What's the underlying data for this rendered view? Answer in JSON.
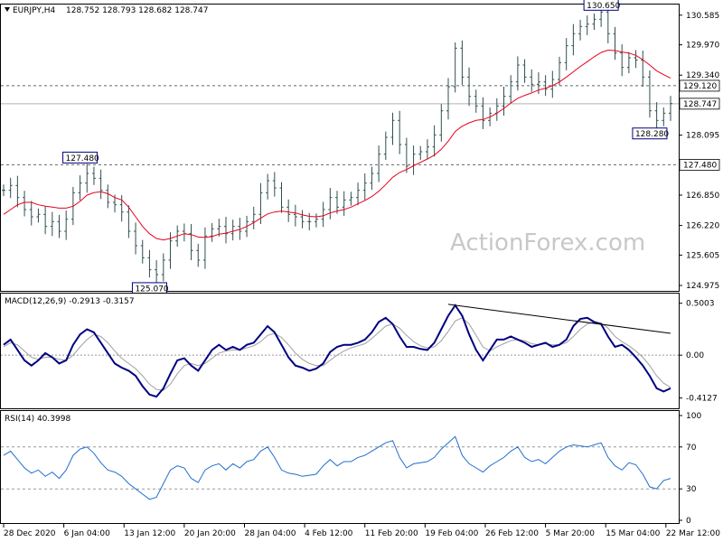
{
  "chart_data": [
    {
      "type": "candlestick",
      "symbol_header": "EURJPY,H4",
      "ohlc_header": "128.752 128.793 128.682 128.747",
      "ylim": [
        124.975,
        130.75
      ],
      "y_ticks": [
        "130.585",
        "129.970",
        "129.340",
        "128.095",
        "126.850",
        "126.220",
        "125.605",
        "124.975"
      ],
      "x_ticks": [
        "28 Dec 2020",
        "6 Jan 04:00",
        "13 Jan 12:00",
        "20 Jan 20:00",
        "28 Jan 04:00",
        "4 Feb 12:00",
        "11 Feb 20:00",
        "19 Feb 04:00",
        "26 Feb 12:00",
        "5 Mar 20:00",
        "15 Mar 04:00",
        "22 Mar 12:00"
      ],
      "levels": [
        {
          "value": 129.12,
          "label": "129.120",
          "style": "dashed"
        },
        {
          "value": 128.747,
          "label": "128.747",
          "style": "solid",
          "current": true
        },
        {
          "value": 127.48,
          "label": "127.480",
          "style": "dashed"
        }
      ],
      "annotations": [
        {
          "label": "130.650",
          "value": 130.65,
          "x_index": 86
        },
        {
          "label": "127.480",
          "value": 127.48,
          "x_index": 11
        },
        {
          "label": "125.070",
          "value": 125.07,
          "x_index": 21
        },
        {
          "label": "128.280",
          "value": 128.28,
          "x_index": 93
        }
      ],
      "closes": [
        126.95,
        127.05,
        126.8,
        126.55,
        126.4,
        126.45,
        126.2,
        126.3,
        126.1,
        126.35,
        126.9,
        127.1,
        127.3,
        127.2,
        126.95,
        126.7,
        126.65,
        126.5,
        126.1,
        125.8,
        125.55,
        125.3,
        125.2,
        125.5,
        125.9,
        126.1,
        126.05,
        125.7,
        125.5,
        126.0,
        126.15,
        126.2,
        126.05,
        126.2,
        126.1,
        126.3,
        126.45,
        126.9,
        127.15,
        127.0,
        126.6,
        126.45,
        126.4,
        126.3,
        126.3,
        126.35,
        126.55,
        126.8,
        126.6,
        126.75,
        126.8,
        126.95,
        127.1,
        127.3,
        127.7,
        128.05,
        128.4,
        127.9,
        127.45,
        127.7,
        127.75,
        127.85,
        128.1,
        128.6,
        129.1,
        129.9,
        129.3,
        128.9,
        128.7,
        128.4,
        128.55,
        128.7,
        128.9,
        129.2,
        129.55,
        129.3,
        129.15,
        129.2,
        129.05,
        129.25,
        129.6,
        129.95,
        130.2,
        130.35,
        130.4,
        130.5,
        130.65,
        130.2,
        129.8,
        129.5,
        129.7,
        129.65,
        129.3,
        128.6,
        128.4,
        128.55,
        128.75
      ],
      "ma_values": [
        126.45,
        126.55,
        126.65,
        126.7,
        126.7,
        126.65,
        126.62,
        126.6,
        126.58,
        126.58,
        126.62,
        126.72,
        126.85,
        126.9,
        126.92,
        126.88,
        126.8,
        126.75,
        126.6,
        126.4,
        126.2,
        126.05,
        125.95,
        125.92,
        125.95,
        126.0,
        126.05,
        126.03,
        125.98,
        125.97,
        125.99,
        126.04,
        126.06,
        126.1,
        126.14,
        126.2,
        126.28,
        126.37,
        126.46,
        126.5,
        126.52,
        126.5,
        126.48,
        126.44,
        126.41,
        126.4,
        126.42,
        126.48,
        126.52,
        126.55,
        126.6,
        126.67,
        126.74,
        126.82,
        126.93,
        127.07,
        127.22,
        127.32,
        127.38,
        127.46,
        127.53,
        127.6,
        127.68,
        127.8,
        127.97,
        128.17,
        128.28,
        128.35,
        128.4,
        128.42,
        128.47,
        128.55,
        128.65,
        128.76,
        128.86,
        128.92,
        128.97,
        129.03,
        129.07,
        129.12,
        129.2,
        129.3,
        129.41,
        129.52,
        129.62,
        129.72,
        129.81,
        129.86,
        129.85,
        129.82,
        129.8,
        129.75,
        129.66,
        129.55,
        129.43,
        129.35,
        129.28
      ],
      "watermark": "ActionForex.com"
    },
    {
      "type": "line",
      "title": "MACD(12,26,9) -0.2913 -0.3157",
      "ylim": [
        -0.46,
        0.55
      ],
      "y_ticks": [
        "0.5003",
        "0.00",
        "-0.4127"
      ],
      "series": [
        {
          "name": "MACD",
          "color": "#000080",
          "values": [
            0.1,
            0.15,
            0.05,
            -0.05,
            -0.1,
            -0.05,
            0.02,
            -0.02,
            -0.08,
            -0.05,
            0.1,
            0.2,
            0.25,
            0.22,
            0.12,
            0.02,
            -0.08,
            -0.12,
            -0.15,
            -0.2,
            -0.3,
            -0.38,
            -0.4,
            -0.32,
            -0.18,
            -0.05,
            -0.03,
            -0.1,
            -0.15,
            -0.05,
            0.05,
            0.1,
            0.05,
            0.08,
            0.05,
            0.1,
            0.12,
            0.2,
            0.28,
            0.22,
            0.1,
            -0.02,
            -0.1,
            -0.12,
            -0.15,
            -0.13,
            -0.08,
            0.03,
            0.08,
            0.1,
            0.1,
            0.12,
            0.15,
            0.22,
            0.32,
            0.36,
            0.3,
            0.18,
            0.08,
            0.08,
            0.06,
            0.05,
            0.12,
            0.25,
            0.38,
            0.48,
            0.38,
            0.2,
            0.05,
            -0.05,
            0.05,
            0.15,
            0.15,
            0.18,
            0.15,
            0.12,
            0.08,
            0.1,
            0.12,
            0.08,
            0.1,
            0.15,
            0.28,
            0.35,
            0.36,
            0.32,
            0.3,
            0.18,
            0.08,
            0.1,
            0.05,
            -0.02,
            -0.1,
            -0.2,
            -0.32,
            -0.35,
            -0.32
          ]
        },
        {
          "name": "Signal",
          "color": "#a0a0a0",
          "values": [
            0.08,
            0.12,
            0.1,
            0.04,
            -0.02,
            -0.04,
            -0.02,
            -0.02,
            -0.04,
            -0.05,
            0.0,
            0.08,
            0.15,
            0.2,
            0.18,
            0.12,
            0.04,
            -0.03,
            -0.08,
            -0.13,
            -0.2,
            -0.28,
            -0.33,
            -0.34,
            -0.28,
            -0.18,
            -0.1,
            -0.08,
            -0.1,
            -0.08,
            -0.03,
            0.02,
            0.04,
            0.05,
            0.05,
            0.07,
            0.09,
            0.13,
            0.19,
            0.21,
            0.17,
            0.1,
            0.02,
            -0.04,
            -0.08,
            -0.1,
            -0.1,
            -0.05,
            0.0,
            0.04,
            0.07,
            0.09,
            0.11,
            0.16,
            0.22,
            0.28,
            0.3,
            0.26,
            0.19,
            0.13,
            0.09,
            0.07,
            0.08,
            0.14,
            0.23,
            0.33,
            0.36,
            0.3,
            0.19,
            0.08,
            0.04,
            0.08,
            0.11,
            0.14,
            0.15,
            0.14,
            0.11,
            0.1,
            0.11,
            0.1,
            0.1,
            0.12,
            0.18,
            0.25,
            0.3,
            0.32,
            0.31,
            0.26,
            0.18,
            0.13,
            0.09,
            0.04,
            -0.02,
            -0.1,
            -0.2,
            -0.27,
            -0.31
          ]
        }
      ],
      "trendline": {
        "from": {
          "x_index": 64,
          "value": 0.49
        },
        "to": {
          "x_index": 96,
          "value": 0.21
        }
      }
    },
    {
      "type": "line",
      "title": "RSI(14) 40.3998",
      "ylim": [
        0,
        100
      ],
      "y_ticks": [
        "100",
        "70",
        "30",
        "0"
      ],
      "levels": [
        70,
        30
      ],
      "series": [
        {
          "name": "RSI",
          "color": "#1f6fd0",
          "values": [
            62,
            66,
            58,
            50,
            45,
            48,
            42,
            46,
            40,
            48,
            62,
            68,
            70,
            64,
            55,
            48,
            46,
            42,
            35,
            30,
            25,
            20,
            22,
            35,
            48,
            52,
            50,
            40,
            36,
            48,
            52,
            54,
            48,
            54,
            50,
            56,
            58,
            66,
            70,
            60,
            48,
            45,
            44,
            42,
            43,
            44,
            52,
            58,
            52,
            56,
            56,
            60,
            62,
            66,
            70,
            74,
            76,
            60,
            50,
            54,
            55,
            56,
            60,
            68,
            74,
            80,
            62,
            54,
            50,
            46,
            52,
            56,
            60,
            66,
            70,
            60,
            56,
            58,
            54,
            60,
            66,
            70,
            72,
            71,
            70,
            72,
            74,
            60,
            52,
            48,
            55,
            53,
            44,
            32,
            30,
            38,
            40
          ]
        }
      ]
    }
  ]
}
